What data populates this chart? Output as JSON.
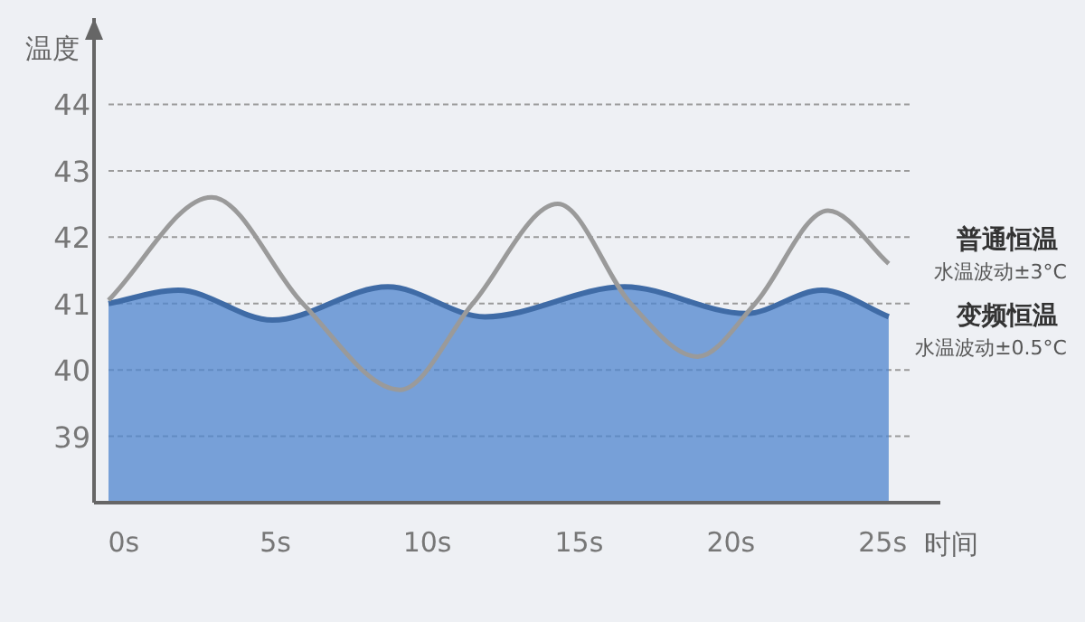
{
  "chart_data": {
    "type": "area",
    "ylabel": "温度",
    "xlabel": "时间",
    "xlim": [
      -0.5,
      26.9
    ],
    "ylim": [
      38,
      45.3
    ],
    "xticks": [
      {
        "value": 0,
        "label": "0s"
      },
      {
        "value": 5,
        "label": "5s"
      },
      {
        "value": 10,
        "label": "10s"
      },
      {
        "value": 15,
        "label": "15s"
      },
      {
        "value": 20,
        "label": "20s"
      },
      {
        "value": 25,
        "label": "25s"
      }
    ],
    "yticks": [
      39,
      40,
      41,
      42,
      43,
      44
    ],
    "grid": "y",
    "series": [
      {
        "name": "普通恒温",
        "type": "line",
        "color": "#9a9a9a",
        "x": [
          -0.5,
          2.9,
          5.9,
          9.1,
          11.5,
          14.3,
          16.7,
          18.9,
          20.8,
          23.2,
          25.2
        ],
        "values": [
          41.05,
          42.6,
          41.0,
          39.7,
          41.0,
          42.5,
          41.0,
          40.2,
          41.0,
          42.4,
          41.6
        ]
      },
      {
        "name": "变频恒温",
        "color": "#4f86cf",
        "x": [
          -0.5,
          1.8,
          4.9,
          8.7,
          11.9,
          16.5,
          20.5,
          23.0,
          25.2
        ],
        "values": [
          41.0,
          41.2,
          40.75,
          41.25,
          40.8,
          41.25,
          40.85,
          41.2,
          40.8
        ]
      }
    ],
    "annotations": [
      "水温波动±3°C",
      "水温波动±0.5°C"
    ]
  }
}
